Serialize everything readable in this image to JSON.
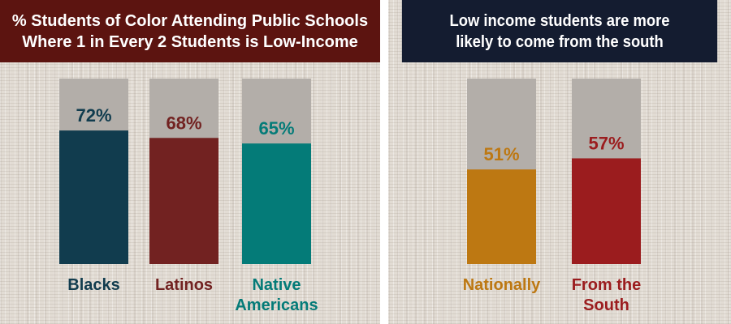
{
  "left_panel": {
    "title_lines": [
      "% Students of Color Attending Public Schools",
      "Where 1 in Every 2 Students is Low-Income"
    ]
  },
  "right_panel": {
    "title_lines": [
      "Low income students are more",
      "likely to come from the south"
    ]
  },
  "colors": {
    "left_header": "#5c1410",
    "right_header": "#141c30",
    "bar_track": "#b3aea9",
    "blacks": "#113c4e",
    "latinos": "#722221",
    "native_americans": "#047b78",
    "nationally": "#bd7812",
    "south": "#9b1c1e"
  },
  "chart_data": [
    {
      "type": "bar",
      "title": "% Students of Color Attending Public Schools Where 1 in Every 2 Students is Low-Income",
      "ylim": [
        0,
        100
      ],
      "categories": [
        {
          "lines": [
            "Blacks"
          ],
          "color": "#113c4e"
        },
        {
          "lines": [
            "Latinos"
          ],
          "color": "#722221"
        },
        {
          "lines": [
            "Native",
            "Americans"
          ],
          "color": "#047b78"
        }
      ],
      "values": [
        72,
        68,
        65
      ],
      "value_labels": [
        "72%",
        "68%",
        "65%"
      ]
    },
    {
      "type": "bar",
      "title": "Low income students are more likely to come from the south",
      "ylim": [
        0,
        100
      ],
      "categories": [
        {
          "lines": [
            "Nationally"
          ],
          "color": "#bd7812"
        },
        {
          "lines": [
            "From the",
            "South"
          ],
          "color": "#9b1c1e"
        }
      ],
      "values": [
        51,
        57
      ],
      "value_labels": [
        "51%",
        "57%"
      ]
    }
  ]
}
